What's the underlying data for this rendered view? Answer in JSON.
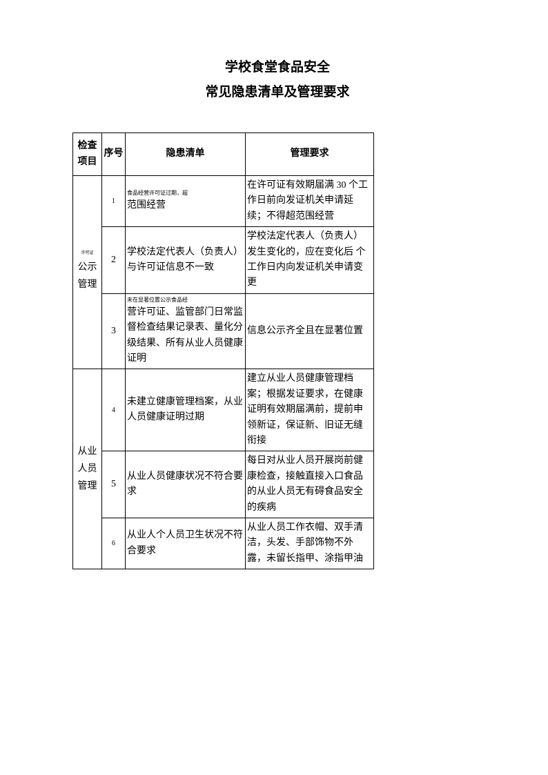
{
  "title": {
    "line1": "学校食堂食品安全",
    "line2": "常见隐患清单及管理要求"
  },
  "table": {
    "headers": {
      "category": "检查项目",
      "no": "序号",
      "hazard": "隐患清单",
      "requirement": "管理要求"
    },
    "groups": [
      {
        "category_tiny": "许可证",
        "category": "公示管理",
        "rows": [
          {
            "no": "1",
            "hazard_small": "食品经营许可证过期，超",
            "hazard": "范围经营",
            "requirement": "在许可证有效期届满 30 个工作日前向发证机关申请延续；不得超范围经营"
          },
          {
            "no": "2",
            "hazard": "学校法定代表人（负责人）与许可证信息不一致",
            "requirement": "学校法定代表人（负责人）发生变化的，应在变化后  个工作日内向发证机关申请变更"
          },
          {
            "no": "3",
            "hazard_small": "未在显著位置公示食品经",
            "hazard": "营许可证、监管部门日常监督检查结果记录表、量化分级结果、所有从业人员健康证明",
            "requirement": "信息公示齐全且在显著位置"
          }
        ]
      },
      {
        "category": "从业人员管理",
        "rows": [
          {
            "no": "4",
            "hazard": "未建立健康管理档案，从业人员健康证明过期",
            "requirement": "建立从业人员健康管理档案；根据发证要求，在健康证明有效期届满前，提前申领新证，保证新、旧证无缝衔接"
          },
          {
            "no": "5",
            "hazard": "从业人员健康状况不符合要求",
            "requirement": "每日对从业人员开展岗前健康检查，接触直接入口食品的从业人员无有碍食品安全的疾病"
          },
          {
            "no": "6",
            "hazard": "从业人个人员卫生状况不符合要求",
            "requirement": "从业人员工作衣帽、双手清洁，头发、手部饰物不外露，未留长指甲、涂指甲油"
          }
        ]
      }
    ]
  },
  "style": {
    "page_bg": "#ffffff",
    "text_color": "#000000",
    "border_color": "#000000",
    "title_fontsize": 19,
    "body_fontsize": 14,
    "small_fontsize": 8,
    "tiny_fontsize": 6,
    "col_widths": {
      "category": 42,
      "no": 34,
      "hazard": 174,
      "requirement": 186
    }
  }
}
